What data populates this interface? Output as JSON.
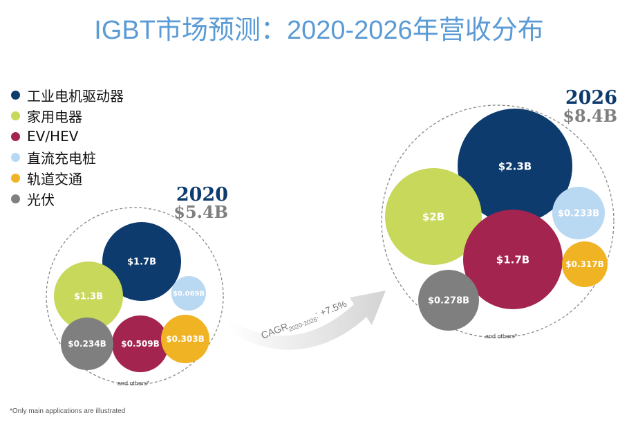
{
  "title": "IGBT市场预测：2020-2026年营收分布",
  "footnote": "*Only main applications are illustrated",
  "chart_data": {
    "type": "bubble",
    "title": "IGBT市场预测：2020-2026年营收分布",
    "legend": [
      {
        "label": "工业电机驱动器",
        "color": "#0d3b6e"
      },
      {
        "label": "家用电器",
        "color": "#c7d85a"
      },
      {
        "label": "EV/HEV",
        "color": "#a3244f"
      },
      {
        "label": "直流充电桩",
        "color": "#b9d8f2"
      },
      {
        "label": "轨道交通",
        "color": "#f0b323"
      },
      {
        "label": "光伏",
        "color": "#7f7f7f"
      }
    ],
    "years": [
      {
        "year": "2020",
        "total": "$5.4B",
        "others_note": "and others*",
        "values": [
          {
            "category": "工业电机驱动器",
            "value": 1.7,
            "label": "$1.7B"
          },
          {
            "category": "家用电器",
            "value": 1.3,
            "label": "$1.3B"
          },
          {
            "category": "EV/HEV",
            "value": 0.509,
            "label": "$0.509B"
          },
          {
            "category": "直流充电桩",
            "value": 0.069,
            "label": "$0.069B"
          },
          {
            "category": "轨道交通",
            "value": 0.303,
            "label": "$0.303B"
          },
          {
            "category": "光伏",
            "value": 0.234,
            "label": "$0.234B"
          }
        ]
      },
      {
        "year": "2026",
        "total": "$8.4B",
        "others_note": "and others*",
        "values": [
          {
            "category": "工业电机驱动器",
            "value": 2.3,
            "label": "$2.3B"
          },
          {
            "category": "家用电器",
            "value": 2.0,
            "label": "$2B"
          },
          {
            "category": "EV/HEV",
            "value": 1.7,
            "label": "$1.7B"
          },
          {
            "category": "直流充电桩",
            "value": 0.233,
            "label": "$0.233B"
          },
          {
            "category": "轨道交通",
            "value": 0.317,
            "label": "$0.317B"
          },
          {
            "category": "光伏",
            "value": 0.278,
            "label": "$0.278B"
          }
        ]
      }
    ],
    "cagr": {
      "prefix": "CAGR",
      "subscript": "2020-2026",
      "value": ": +7.5%"
    }
  }
}
